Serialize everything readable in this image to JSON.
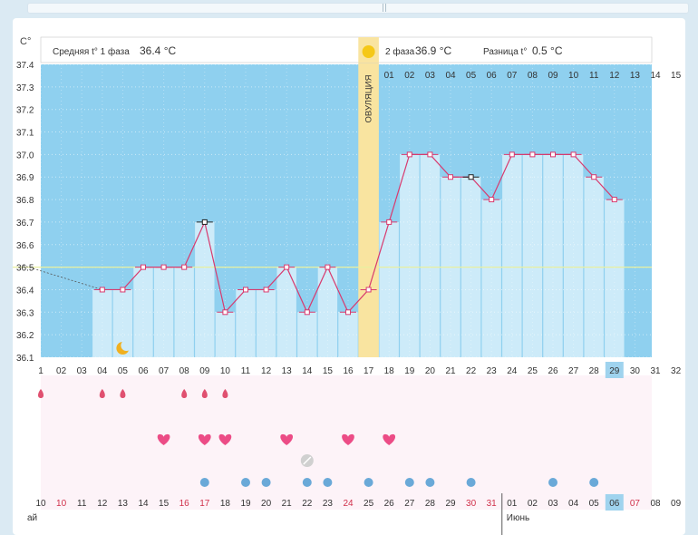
{
  "header": {
    "unit_label": "C°",
    "phase1_label": "Средняя t° 1 фаза",
    "phase1_value": "36.4 °C",
    "phase2_label": "2 фаза",
    "phase2_value": "36.9 °C",
    "diff_label": "Разница t°",
    "diff_value": "0.5 °C",
    "ovulation_label": "ОВУЛЯЦИЯ",
    "month_label": "Июнь",
    "prev_month_fragment": "ай"
  },
  "colors": {
    "plot_bg": "#8fd0ef",
    "column_fill": "#cdebf9",
    "line": "#d83a6e",
    "ovulation": "#f9e4a0",
    "coverline": "#e8f0a0",
    "lower_bg": "#fdf3f8",
    "drop": "#e05070",
    "heart": "#ec4c86",
    "water": "#6aa9d8",
    "today": "#9fd3ee"
  },
  "chart_data": {
    "type": "line",
    "title": "",
    "xlabel": "",
    "ylabel": "C°",
    "ylim": [
      36.1,
      37.4
    ],
    "yticks": [
      "37.4",
      "37.3",
      "37.2",
      "37.1",
      "37.0",
      "36.9",
      "36.8",
      "36.7",
      "36.6",
      "36.5",
      "36.4",
      "36.3",
      "36.2",
      "36.1"
    ],
    "grid": true,
    "cycle_days": [
      "1",
      "02",
      "03",
      "04",
      "05",
      "06",
      "07",
      "08",
      "09",
      "10",
      "11",
      "12",
      "13",
      "14",
      "15",
      "16",
      "17",
      "18",
      "19",
      "20",
      "21",
      "22",
      "23",
      "24",
      "25",
      "26",
      "27",
      "28",
      "29",
      "30",
      "31",
      "32"
    ],
    "dpo_labels": [
      "01",
      "02",
      "03",
      "04",
      "05",
      "06",
      "07",
      "08",
      "09",
      "10",
      "11",
      "12",
      "13",
      "14",
      "15"
    ],
    "dates": [
      "10",
      "10",
      "11",
      "12",
      "13",
      "14",
      "15",
      "16",
      "17",
      "18",
      "19",
      "20",
      "21",
      "22",
      "23",
      "24",
      "25",
      "26",
      "27",
      "28",
      "29",
      "30",
      "31",
      "01",
      "02",
      "03",
      "04",
      "05",
      "06",
      "07",
      "08",
      "09"
    ],
    "date_red_indices": [
      1,
      7,
      8,
      15,
      21,
      22,
      29
    ],
    "temps": [
      36.5,
      null,
      null,
      36.4,
      36.4,
      36.5,
      36.5,
      36.5,
      36.7,
      36.3,
      36.4,
      36.4,
      36.5,
      36.3,
      36.5,
      36.3,
      36.4,
      36.7,
      37.0,
      37.0,
      36.9,
      36.9,
      36.8,
      37.0,
      37.0,
      37.0,
      37.0,
      36.9,
      36.8,
      null,
      null,
      null
    ],
    "excluded_days": [
      "09",
      "22"
    ],
    "coverline": 36.5,
    "ovulation_day": "17",
    "today_day": "29",
    "today_date": "06",
    "menstruation_days": [
      "1",
      "04",
      "05",
      "08",
      "09",
      "10"
    ],
    "intercourse_days": [
      "07",
      "09",
      "10",
      "13",
      "16",
      "18"
    ],
    "mucus_days": [
      "09",
      "11",
      "12",
      "14",
      "15",
      "17",
      "19",
      "20",
      "22",
      "26",
      "28"
    ],
    "pill_days": [
      "14"
    ],
    "moon_day": "05"
  }
}
